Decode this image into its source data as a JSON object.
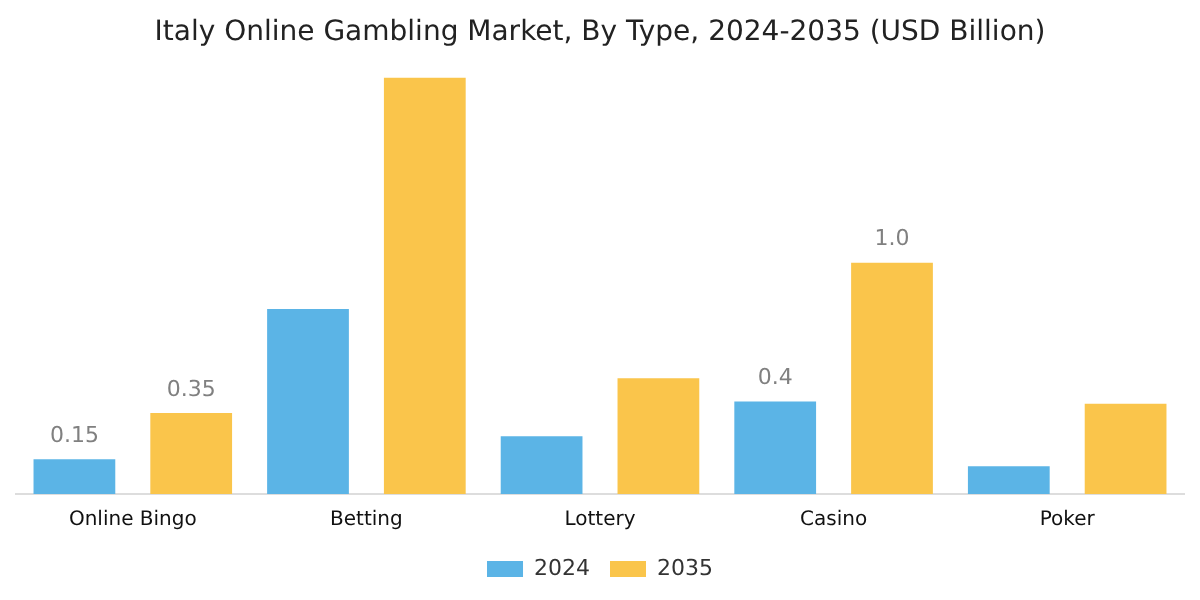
{
  "chart_data": {
    "type": "bar",
    "title": "Italy Online Gambling Market, By Type, 2024-2035 (USD Billion)",
    "categories": [
      "Online Bingo",
      "Betting",
      "Lottery",
      "Casino",
      "Poker"
    ],
    "series": [
      {
        "name": "2024",
        "color": "#5bb4e6",
        "values": [
          0.15,
          0.8,
          0.25,
          0.4,
          0.12
        ],
        "value_labels": [
          "0.15",
          null,
          null,
          "0.4",
          null
        ]
      },
      {
        "name": "2035",
        "color": "#fac54b",
        "values": [
          0.35,
          1.8,
          0.5,
          1.0,
          0.39
        ],
        "value_labels": [
          "0.35",
          null,
          null,
          "1.0",
          null
        ]
      }
    ],
    "legend": "bottom",
    "grid": false
  }
}
